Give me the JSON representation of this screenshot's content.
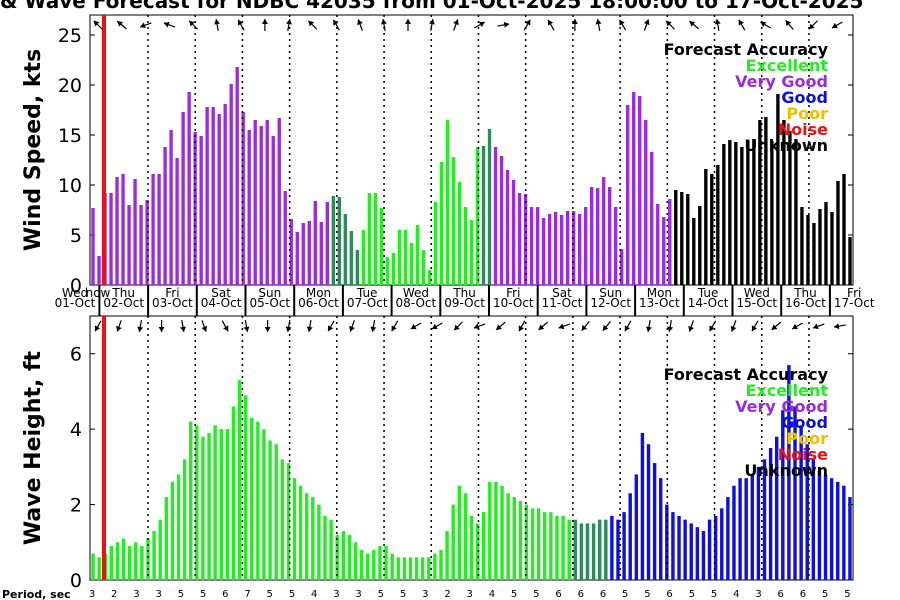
{
  "title": "& Wave Forecast for NDBC 42035 from 01-Oct-2025 18:00:00 to 17-Oct-2025",
  "colors": {
    "excellent": "#22ee22",
    "very_good": "#9a2be0",
    "good": "#1010dd",
    "poor": "#f0c000",
    "noise": "#ee1111",
    "unknown": "#000000",
    "transition": "#2e8b57",
    "now_line": "#ee1111"
  },
  "chart_data": [
    {
      "type": "bar",
      "id": "wind",
      "ylabel": "Wind Speed, kts",
      "ylim": [
        0,
        27
      ],
      "yticks": [
        0,
        5,
        10,
        15,
        20,
        25
      ],
      "values": [
        7.7,
        2.9,
        9.2,
        9.2,
        10.8,
        11.1,
        8.0,
        10.6,
        8.0,
        8.5,
        11.1,
        11.1,
        13.8,
        15.5,
        12.7,
        17.3,
        19.3,
        15.3,
        14.9,
        17.8,
        17.8,
        17.1,
        18.1,
        20.1,
        21.8,
        17.3,
        15.5,
        16.5,
        15.9,
        16.5,
        14.9,
        16.7,
        9.4,
        6.6,
        5.3,
        6.2,
        6.4,
        8.4,
        6.3,
        8.3,
        8.9,
        8.8,
        7.1,
        5.4,
        3.5,
        5.5,
        9.2,
        9.2,
        7.7,
        2.8,
        3.2,
        5.5,
        5.5,
        4.2,
        6.0,
        3.5,
        1.5,
        8.3,
        12.3,
        16.5,
        12.8,
        10.3,
        7.8,
        6.5,
        13.8,
        13.9,
        15.6,
        13.8,
        12.9,
        11.5,
        10.5,
        9.2,
        9.1,
        7.8,
        7.8,
        6.7,
        7.1,
        7.3,
        7.0,
        7.4,
        7.4,
        7.1,
        7.8,
        9.8,
        9.7,
        10.8,
        9.8,
        7.8,
        3.6,
        18.0,
        19.3,
        18.9,
        16.5,
        13.3,
        8.1,
        6.8,
        8.6,
        9.5,
        9.3,
        9.1,
        6.7,
        7.9,
        11.6,
        11.1,
        12.0,
        14.1,
        14.5,
        14.3,
        13.8,
        14.5,
        14.6,
        16.5,
        16.8,
        14.4,
        19.1,
        16.5,
        15.4,
        14.6,
        7.8,
        7.0,
        6.2,
        7.6,
        8.3,
        7.3,
        10.4,
        11.1,
        4.8
      ],
      "categories_acc": "VVVVVVVVVVVVVVVVVVVVVVVVVVVVVVVVVVVVVVVVTTTTTEEEEEEEEEEEEEEEEEEEETTVVVVVVVVVVVVVVVVVVVVVVVVVVVVVVUUUUUUUUUUUUUUUUUUUUUUUUUUUUUUUUUUUUUUUUUUUUUUUUUUUUUUUU"
    },
    {
      "type": "bar",
      "id": "wave",
      "ylabel": "Wave Height, ft",
      "ylim": [
        0,
        7
      ],
      "yticks": [
        0,
        2,
        4,
        6
      ],
      "values": [
        0.7,
        0.6,
        0.7,
        0.9,
        1.0,
        1.1,
        0.9,
        1.0,
        0.9,
        1.1,
        1.3,
        1.6,
        2.2,
        2.6,
        2.8,
        3.2,
        4.2,
        4.1,
        3.8,
        3.9,
        4.1,
        4.0,
        4.0,
        4.6,
        5.3,
        4.9,
        4.3,
        4.2,
        4.0,
        3.7,
        3.6,
        3.2,
        3.1,
        2.7,
        2.5,
        2.3,
        2.2,
        2.0,
        1.7,
        1.6,
        1.2,
        1.3,
        1.2,
        1.0,
        0.8,
        0.7,
        0.8,
        0.9,
        0.9,
        0.7,
        0.6,
        0.6,
        0.6,
        0.6,
        0.6,
        0.6,
        0.7,
        0.8,
        1.3,
        2.0,
        2.5,
        2.3,
        1.7,
        1.5,
        1.8,
        2.6,
        2.6,
        2.5,
        2.3,
        2.2,
        2.1,
        2.0,
        1.9,
        1.9,
        1.8,
        1.8,
        1.7,
        1.7,
        1.6,
        1.6,
        1.5,
        1.5,
        1.5,
        1.6,
        1.6,
        1.7,
        1.6,
        1.8,
        2.3,
        2.8,
        3.9,
        3.6,
        3.1,
        2.7,
        2.0,
        1.8,
        1.7,
        1.6,
        1.5,
        1.4,
        1.3,
        1.6,
        1.7,
        1.9,
        2.2,
        2.5,
        2.7,
        2.7,
        2.8,
        3.0,
        3.2,
        3.5,
        3.8,
        4.5,
        5.7,
        4.6,
        4.1,
        3.6,
        3.2,
        2.9,
        2.8,
        2.7,
        2.6,
        2.5,
        2.2
      ],
      "categories_acc": "EEEEEEEEEEEEEEEEEEEEEEEEEEEEEEEEEEEEEEEEEEEEEEEEEEEEEEEEEEEEEEEEEEEEEEEEEEEEEEETTTTTTGGGGGGGGGGGGGGGGGGGGGGGGGGGGGGGGGGGGGGGGGGGGGGGGGGGGGGGGGGGGGGGGGGG"
    }
  ],
  "days": [
    {
      "dow": "Wed",
      "date": "01-Oct"
    },
    {
      "dow": "Thu",
      "date": "02-Oct"
    },
    {
      "dow": "Fri",
      "date": "03-Oct"
    },
    {
      "dow": "Sat",
      "date": "04-Oct"
    },
    {
      "dow": "Sun",
      "date": "05-Oct"
    },
    {
      "dow": "Mon",
      "date": "06-Oct"
    },
    {
      "dow": "Tue",
      "date": "07-Oct"
    },
    {
      "dow": "Wed",
      "date": "08-Oct"
    },
    {
      "dow": "Thu",
      "date": "09-Oct"
    },
    {
      "dow": "Fri",
      "date": "10-Oct"
    },
    {
      "dow": "Sat",
      "date": "11-Oct"
    },
    {
      "dow": "Sun",
      "date": "12-Oct"
    },
    {
      "dow": "Mon",
      "date": "13-Oct"
    },
    {
      "dow": "Tue",
      "date": "14-Oct"
    },
    {
      "dow": "Wed",
      "date": "15-Oct"
    },
    {
      "dow": "Thu",
      "date": "16-Oct"
    },
    {
      "dow": "Fri",
      "date": "17-Oct"
    }
  ],
  "now_label": "now",
  "legend": {
    "title": "Forecast Accuracy",
    "items": [
      "Excellent",
      "Very Good",
      "Good",
      "Poor",
      "Noise",
      "Unknown"
    ]
  },
  "period_label": "Period, sec",
  "periods": [
    "3",
    "2",
    "3",
    "3",
    "5",
    "5",
    "6",
    "7",
    "5",
    "5",
    "4",
    "3",
    "3",
    "5",
    "5",
    "3",
    "2",
    "3",
    "4",
    "5",
    "5",
    "6",
    "6",
    "6",
    "5",
    "5",
    "6",
    "5",
    "5",
    "4",
    "3",
    "6",
    "6",
    "5",
    "5"
  ],
  "arrows_wind": [
    45,
    40,
    -20,
    20,
    45,
    80,
    60,
    90,
    100,
    45,
    60,
    70,
    80,
    90,
    100,
    110,
    150,
    170,
    120,
    60,
    90,
    80,
    60,
    110,
    45,
    40,
    80,
    60,
    30,
    50,
    -45,
    -30
  ],
  "arrows_wave": [
    -60,
    -70,
    -80,
    -90,
    -100,
    -110,
    -120,
    -100,
    -90,
    -80,
    -80,
    -60,
    -70,
    -80,
    -60,
    -30,
    -30,
    -45,
    -20,
    -40,
    -60,
    -40,
    -20,
    -50,
    -50,
    -60,
    -80,
    -80,
    -70,
    -60,
    -70,
    -60,
    -40,
    -30,
    -20,
    -10
  ]
}
